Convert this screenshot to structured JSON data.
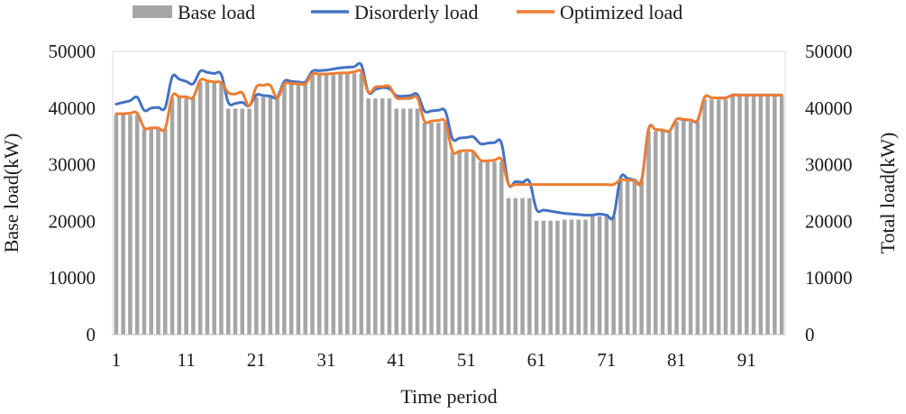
{
  "chart_data": {
    "type": "bar+line",
    "title": "",
    "xlabel": "Time period",
    "ylabel_left": "Base load(kW)",
    "ylabel_right": "Total load(kW)",
    "ylim_left": [
      0,
      50000
    ],
    "ylim_right": [
      0,
      50000
    ],
    "y_ticks": [
      "0",
      "10000",
      "20000",
      "30000",
      "40000",
      "50000"
    ],
    "x_tick_labels": [
      "1",
      "11",
      "21",
      "31",
      "41",
      "51",
      "61",
      "71",
      "81",
      "91"
    ],
    "x": [
      1,
      2,
      3,
      4,
      5,
      6,
      7,
      8,
      9,
      10,
      11,
      12,
      13,
      14,
      15,
      16,
      17,
      18,
      19,
      20,
      21,
      22,
      23,
      24,
      25,
      26,
      27,
      28,
      29,
      30,
      31,
      32,
      33,
      34,
      35,
      36,
      37,
      38,
      39,
      40,
      41,
      42,
      43,
      44,
      45,
      46,
      47,
      48,
      49,
      50,
      51,
      52,
      53,
      54,
      55,
      56,
      57,
      58,
      59,
      60,
      61,
      62,
      63,
      64,
      65,
      66,
      67,
      68,
      69,
      70,
      71,
      72,
      73,
      74,
      75,
      76,
      77,
      78,
      79,
      80,
      81,
      82,
      83,
      84,
      85,
      86,
      87,
      88,
      89,
      90,
      91,
      92,
      93,
      94,
      95,
      96
    ],
    "grid": false,
    "legend_position": "top",
    "colors": {
      "base": "#a5a5a5",
      "disorderly": "#4472c4",
      "optimized": "#ed7d31"
    },
    "series": [
      {
        "name": "Base load",
        "type": "bar",
        "values": [
          38800,
          38800,
          38800,
          38800,
          36300,
          36300,
          36300,
          36300,
          41800,
          41800,
          41800,
          41800,
          44600,
          44600,
          44600,
          44600,
          39900,
          39900,
          39900,
          39900,
          41900,
          41900,
          41900,
          41900,
          44300,
          44300,
          44300,
          44300,
          45800,
          45800,
          45800,
          45800,
          46100,
          46100,
          46100,
          46100,
          41700,
          41700,
          41700,
          41700,
          39900,
          39900,
          39900,
          39900,
          37400,
          37400,
          37400,
          37400,
          32200,
          32200,
          32200,
          32200,
          30500,
          30500,
          30500,
          30500,
          24100,
          24100,
          24100,
          24100,
          20100,
          20100,
          20100,
          20100,
          20300,
          20300,
          20300,
          20300,
          20900,
          20900,
          20900,
          20900,
          27200,
          27200,
          27200,
          27200,
          35900,
          35900,
          35900,
          35900,
          37600,
          37600,
          37600,
          37600,
          41500,
          41500,
          41500,
          41500,
          42100,
          42100,
          42100,
          42100,
          42100,
          42100,
          42100,
          42100
        ]
      },
      {
        "name": "Disorderly load",
        "type": "line",
        "values": [
          40700,
          41000,
          41300,
          41900,
          39600,
          40000,
          40100,
          40100,
          45500,
          45100,
          44700,
          44300,
          46500,
          46300,
          46100,
          45900,
          41000,
          40800,
          41000,
          40400,
          42300,
          42200,
          42100,
          41900,
          44700,
          44700,
          44600,
          44600,
          46500,
          46600,
          46700,
          46900,
          47100,
          47200,
          47300,
          47600,
          42800,
          43300,
          43600,
          43400,
          42200,
          42100,
          42200,
          42400,
          39500,
          39500,
          39600,
          39400,
          34600,
          34700,
          34800,
          34900,
          33700,
          33800,
          33900,
          33800,
          26600,
          27000,
          26900,
          27000,
          22100,
          22000,
          21800,
          21600,
          21400,
          21300,
          21200,
          21100,
          21100,
          21300,
          21100,
          20900,
          27700,
          27600,
          27300,
          27300,
          36300,
          36200,
          36100,
          36000,
          38000,
          37900,
          37900,
          37800,
          41900,
          41800,
          41800,
          41800,
          42300,
          42300,
          42300,
          42300,
          42300,
          42300,
          42300,
          42300
        ]
      },
      {
        "name": "Optimized load",
        "type": "line",
        "values": [
          39000,
          39000,
          39100,
          39100,
          36500,
          36500,
          36500,
          36400,
          42100,
          42000,
          42000,
          41900,
          44900,
          44800,
          44600,
          44500,
          42700,
          42500,
          42700,
          40400,
          43700,
          44000,
          44000,
          41800,
          44300,
          44300,
          44300,
          44300,
          46000,
          46000,
          46000,
          46100,
          46200,
          46200,
          46400,
          46400,
          42800,
          43700,
          43800,
          43800,
          41800,
          41700,
          41700,
          41800,
          37700,
          37700,
          37800,
          37500,
          32400,
          32400,
          32500,
          32300,
          30800,
          30700,
          30800,
          30900,
          26600,
          26500,
          26500,
          26500,
          26500,
          26500,
          26500,
          26500,
          26500,
          26500,
          26500,
          26500,
          26500,
          26500,
          26500,
          26500,
          27300,
          27300,
          27200,
          27100,
          36200,
          36200,
          36100,
          36000,
          38000,
          38000,
          37900,
          37900,
          41900,
          41800,
          41800,
          41800,
          42300,
          42300,
          42300,
          42300,
          42300,
          42300,
          42300,
          42300
        ]
      }
    ]
  }
}
